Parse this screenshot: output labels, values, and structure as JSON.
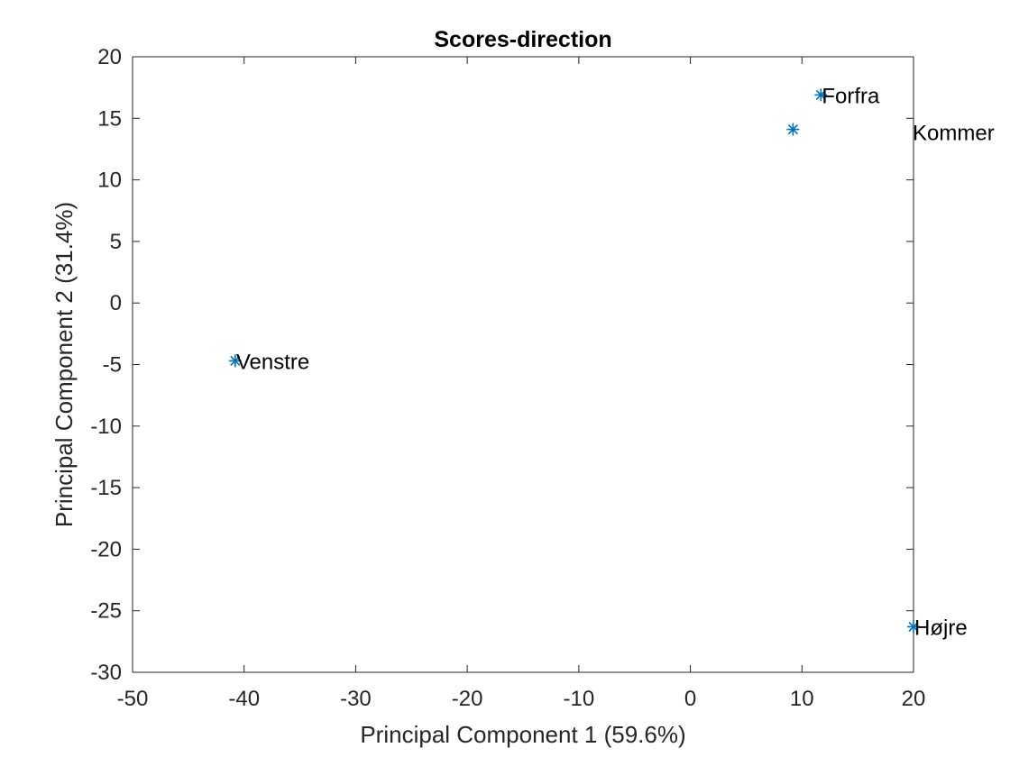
{
  "chart_data": {
    "type": "scatter",
    "title": "Scores-direction",
    "xlabel": "Principal Component 1 (59.6%)",
    "ylabel": "Principal Component 2 (31.4%)",
    "xlim": [
      -50,
      20
    ],
    "ylim": [
      -30,
      20
    ],
    "xticks": [
      -50,
      -40,
      -30,
      -20,
      -10,
      0,
      10,
      20
    ],
    "yticks": [
      20,
      15,
      10,
      5,
      0,
      -5,
      -10,
      -15,
      -20,
      -25,
      -30
    ],
    "grid": false,
    "marker": "asterisk",
    "colors": {
      "marker": "#0072BD",
      "axis": "#262626",
      "text": "#000000"
    },
    "points": [
      {
        "label": "Forfra",
        "x": 11.7,
        "y": 16.9
      },
      {
        "label": "",
        "x": 9.2,
        "y": 14.1
      },
      {
        "label": "Venstre",
        "x": -40.8,
        "y": -4.7
      },
      {
        "label": "Højre",
        "x": 20.0,
        "y": -26.3
      }
    ],
    "free_labels": [
      {
        "text": "Kommer",
        "x": 20.0,
        "y": 13.8
      }
    ]
  }
}
